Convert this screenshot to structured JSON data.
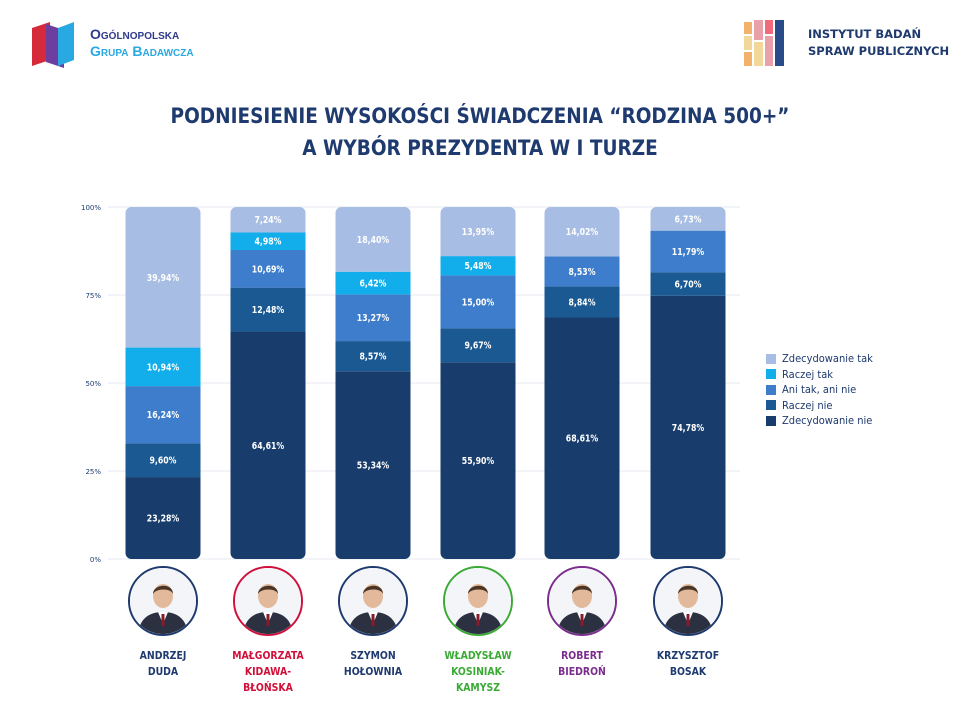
{
  "header": {
    "left_logo_line1": "Ogólnopolska",
    "left_logo_line2": "Grupa Badawcza",
    "right_logo_line1": "INSTYTUT BADAŃ",
    "right_logo_line2": "SPRAW PUBLICZNYCH"
  },
  "colors": {
    "zdecydowanie_tak": "#a7bde3",
    "raczej_tak": "#11aeeb",
    "ani_tak_ani_nie": "#3d7dcb",
    "raczej_nie": "#1b5993",
    "zdecydowanie_nie": "#183d6d",
    "title": "#1e3a6e"
  },
  "chart_data": {
    "type": "bar",
    "stacked": true,
    "title": "PODNIESIENIE WYSOKOŚCI ŚWIADCZENIA “RODZINA 500+”\nA WYBÓR PREZYDENTA W I TURZE",
    "categories": [
      "ANDRZEJ\nDUDA",
      "MAŁGORZATA\nKIDAWA-BŁOŃSKA",
      "SZYMON\nHOŁOWNIA",
      "WŁADYSŁAW\nKOSINIAK-KAMYSZ",
      "ROBERT\nBIEDROŃ",
      "KRZYSZTOF\nBOSAK"
    ],
    "category_colors": [
      "#1e3a6e",
      "#d0103a",
      "#1e3a6e",
      "#3aaa35",
      "#7b2d8e",
      "#1e3a6e"
    ],
    "yticks": [
      "0%",
      "25%",
      "50%",
      "75%",
      "100%"
    ],
    "ylim": [
      0,
      100
    ],
    "legend_position": "right",
    "series": [
      {
        "name": "Zdecydowanie nie",
        "color": "#183d6d",
        "values": [
          23.28,
          64.61,
          53.34,
          55.9,
          68.61,
          74.78
        ],
        "labels": [
          "23,28%",
          "64,61%",
          "53,34%",
          "55,90%",
          "68,61%",
          "74,78%"
        ]
      },
      {
        "name": "Raczej nie",
        "color": "#1b5993",
        "values": [
          9.6,
          12.48,
          8.57,
          9.67,
          8.84,
          6.7
        ],
        "labels": [
          "9,60%",
          "12,48%",
          "8,57%",
          "9,67%",
          "8,84%",
          "6,70%"
        ]
      },
      {
        "name": "Ani tak, ani nie",
        "color": "#3d7dcb",
        "values": [
          16.24,
          10.69,
          13.27,
          15.0,
          8.53,
          11.79
        ],
        "labels": [
          "16,24%",
          "10,69%",
          "13,27%",
          "15,00%",
          "8,53%",
          "11,79%"
        ]
      },
      {
        "name": "Raczej tak",
        "color": "#11aeeb",
        "values": [
          10.94,
          4.98,
          6.42,
          5.48,
          0,
          0
        ],
        "labels": [
          "10,94%",
          "4,98%",
          "6,42%",
          "5,48%",
          "",
          ""
        ]
      },
      {
        "name": "Zdecydowanie tak",
        "color": "#a7bde3",
        "values": [
          39.94,
          7.24,
          18.4,
          13.95,
          14.02,
          6.73
        ],
        "labels": [
          "39,94%",
          "7,24%",
          "18,40%",
          "13,95%",
          "14,02%",
          "6,73%"
        ]
      }
    ],
    "legend_order": [
      "Zdecydowanie tak",
      "Raczej tak",
      "Ani tak, ani nie",
      "Raczej nie",
      "Zdecydowanie nie"
    ]
  }
}
